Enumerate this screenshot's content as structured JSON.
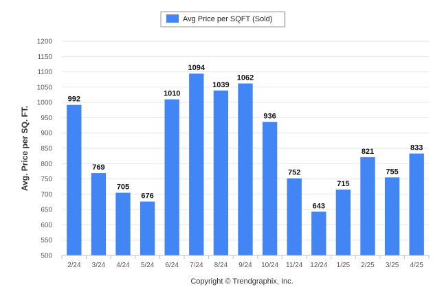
{
  "chart_data": {
    "type": "bar",
    "title": "",
    "xlabel": "",
    "ylabel": "Avg. Price per SQ. FT.",
    "categories": [
      "2/24",
      "3/24",
      "4/24",
      "5/24",
      "6/24",
      "7/24",
      "8/24",
      "9/24",
      "10/24",
      "11/24",
      "12/24",
      "1/25",
      "2/25",
      "3/25",
      "4/25"
    ],
    "series": [
      {
        "name": "Avg Price per SQFT (Sold)",
        "values": [
          992,
          769,
          705,
          676,
          1010,
          1094,
          1039,
          1062,
          936,
          752,
          643,
          715,
          821,
          755,
          833
        ],
        "color": "#4285f4"
      }
    ],
    "ylim": [
      500,
      1200
    ],
    "yticks": [
      500,
      550,
      600,
      650,
      700,
      750,
      800,
      850,
      900,
      950,
      1000,
      1050,
      1100,
      1150,
      1200
    ],
    "grid": true,
    "legend": "top-center",
    "data_labels": true
  },
  "footer": {
    "copyright": "Copyright © Trendgraphix, Inc."
  },
  "colors": {
    "bar": "#4285f4",
    "grid": "#e6e6e6",
    "axis": "#c0c0c0"
  }
}
